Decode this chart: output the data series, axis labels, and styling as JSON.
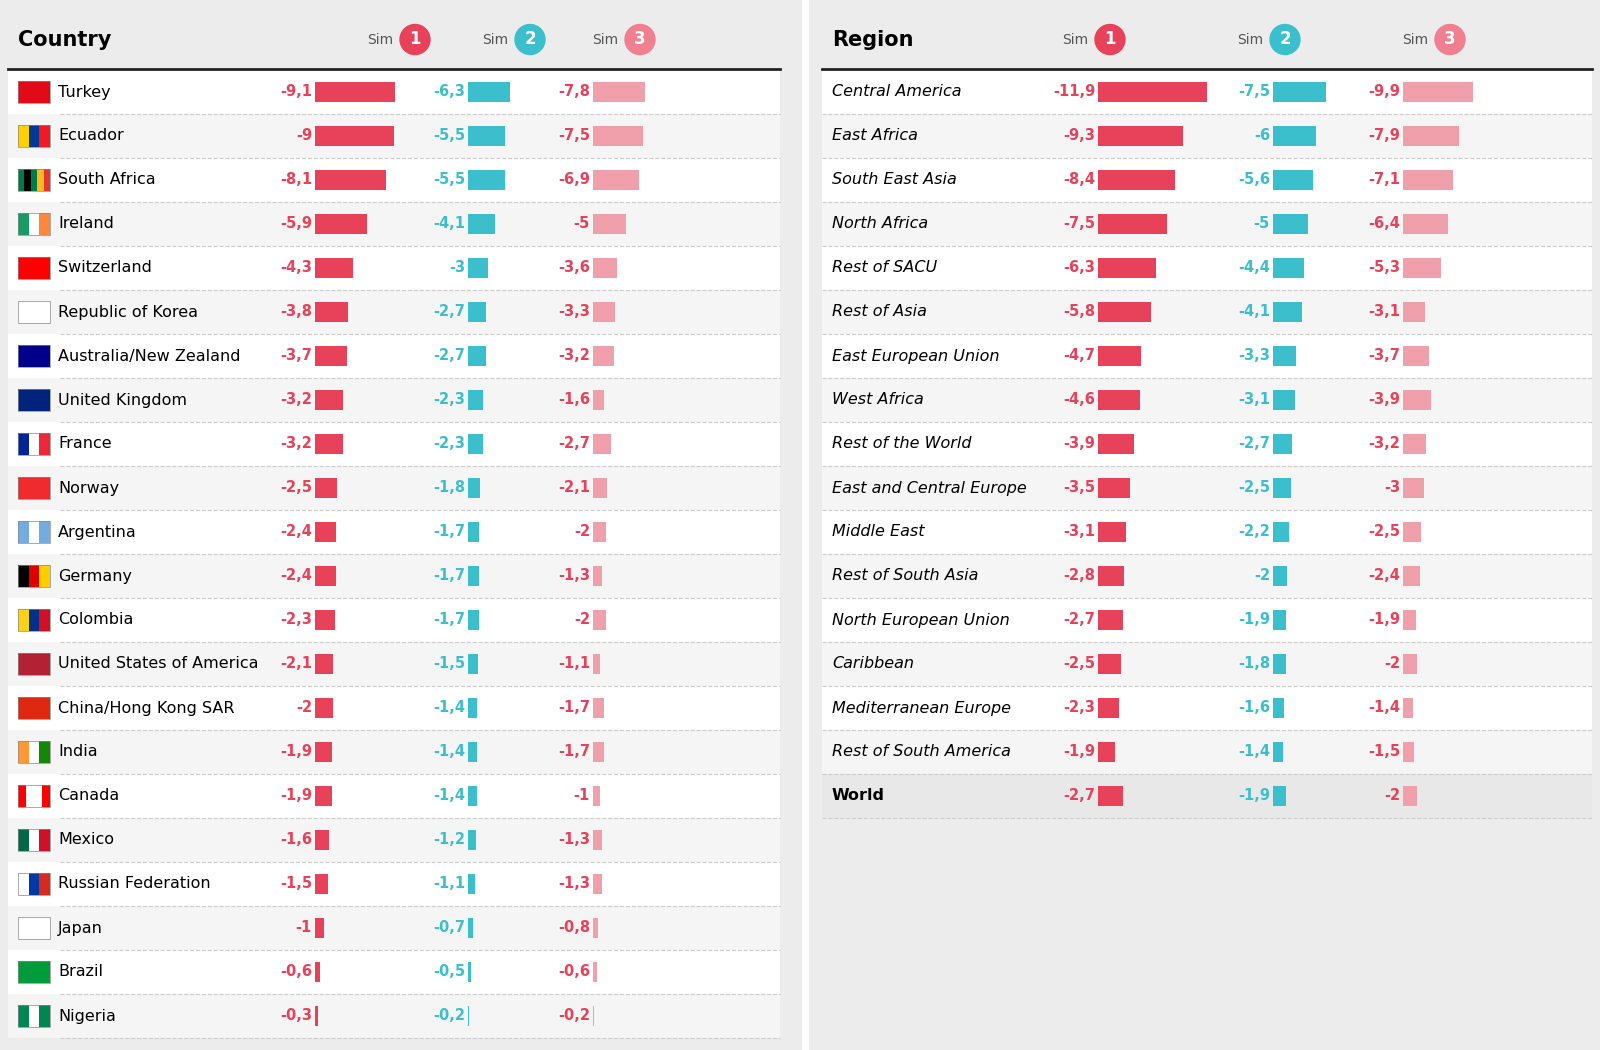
{
  "background_color": "#ececec",
  "white_bg": "#ffffff",
  "alt_bg": "#f5f5f5",
  "world_bg": "#e8e8e8",
  "country_header": "Country",
  "region_header": "Region",
  "sim1_color": "#e8415a",
  "sim2_color": "#3bbfcc",
  "sim3_color": "#f0a0aa",
  "bar1_color": "#e8415a",
  "bar2_color": "#3bbfcc",
  "bar3_color": "#f0a0aa",
  "sep_line_color": "#333333",
  "dash_color": "#cccccc",
  "header_text_color": "#444444",
  "countries": [
    {
      "name": "Turkey",
      "s1": -9.1,
      "s2": -6.3,
      "s3": -7.8
    },
    {
      "name": "Ecuador",
      "s1": -9.0,
      "s2": -5.5,
      "s3": -7.5
    },
    {
      "name": "South Africa",
      "s1": -8.1,
      "s2": -5.5,
      "s3": -6.9
    },
    {
      "name": "Ireland",
      "s1": -5.9,
      "s2": -4.1,
      "s3": -5.0
    },
    {
      "name": "Switzerland",
      "s1": -4.3,
      "s2": -3.0,
      "s3": -3.6
    },
    {
      "name": "Republic of Korea",
      "s1": -3.8,
      "s2": -2.7,
      "s3": -3.3
    },
    {
      "name": "Australia/New Zealand",
      "s1": -3.7,
      "s2": -2.7,
      "s3": -3.2
    },
    {
      "name": "United Kingdom",
      "s1": -3.2,
      "s2": -2.3,
      "s3": -1.6
    },
    {
      "name": "France",
      "s1": -3.2,
      "s2": -2.3,
      "s3": -2.7
    },
    {
      "name": "Norway",
      "s1": -2.5,
      "s2": -1.8,
      "s3": -2.1
    },
    {
      "name": "Argentina",
      "s1": -2.4,
      "s2": -1.7,
      "s3": -2.0
    },
    {
      "name": "Germany",
      "s1": -2.4,
      "s2": -1.7,
      "s3": -1.3
    },
    {
      "name": "Colombia",
      "s1": -2.3,
      "s2": -1.7,
      "s3": -2.0
    },
    {
      "name": "United States of America",
      "s1": -2.1,
      "s2": -1.5,
      "s3": -1.1
    },
    {
      "name": "China/Hong Kong SAR",
      "s1": -2.0,
      "s2": -1.4,
      "s3": -1.7
    },
    {
      "name": "India",
      "s1": -1.9,
      "s2": -1.4,
      "s3": -1.7
    },
    {
      "name": "Canada",
      "s1": -1.9,
      "s2": -1.4,
      "s3": -1.0
    },
    {
      "name": "Mexico",
      "s1": -1.6,
      "s2": -1.2,
      "s3": -1.3
    },
    {
      "name": "Russian Federation",
      "s1": -1.5,
      "s2": -1.1,
      "s3": -1.3
    },
    {
      "name": "Japan",
      "s1": -1.0,
      "s2": -0.7,
      "s3": -0.8
    },
    {
      "name": "Brazil",
      "s1": -0.6,
      "s2": -0.5,
      "s3": -0.6
    },
    {
      "name": "Nigeria",
      "s1": -0.3,
      "s2": -0.2,
      "s3": -0.2
    }
  ],
  "regions": [
    {
      "name": "Central America",
      "s1": -11.9,
      "s2": -7.5,
      "s3": -9.9,
      "bold": false
    },
    {
      "name": "East Africa",
      "s1": -9.3,
      "s2": -6.0,
      "s3": -7.9,
      "bold": false
    },
    {
      "name": "South East Asia",
      "s1": -8.4,
      "s2": -5.6,
      "s3": -7.1,
      "bold": false
    },
    {
      "name": "North Africa",
      "s1": -7.5,
      "s2": -5.0,
      "s3": -6.4,
      "bold": false
    },
    {
      "name": "Rest of SACU",
      "s1": -6.3,
      "s2": -4.4,
      "s3": -5.3,
      "bold": false
    },
    {
      "name": "Rest of Asia",
      "s1": -5.8,
      "s2": -4.1,
      "s3": -3.1,
      "bold": false
    },
    {
      "name": "East European Union",
      "s1": -4.7,
      "s2": -3.3,
      "s3": -3.7,
      "bold": false
    },
    {
      "name": "West Africa",
      "s1": -4.6,
      "s2": -3.1,
      "s3": -3.9,
      "bold": false
    },
    {
      "name": "Rest of the World",
      "s1": -3.9,
      "s2": -2.7,
      "s3": -3.2,
      "bold": false
    },
    {
      "name": "East and Central Europe",
      "s1": -3.5,
      "s2": -2.5,
      "s3": -3.0,
      "bold": false
    },
    {
      "name": "Middle East",
      "s1": -3.1,
      "s2": -2.2,
      "s3": -2.5,
      "bold": false
    },
    {
      "name": "Rest of South Asia",
      "s1": -2.8,
      "s2": -2.0,
      "s3": -2.4,
      "bold": false
    },
    {
      "name": "North European Union",
      "s1": -2.7,
      "s2": -1.9,
      "s3": -1.9,
      "bold": false
    },
    {
      "name": "Caribbean",
      "s1": -2.5,
      "s2": -1.8,
      "s3": -2.0,
      "bold": false
    },
    {
      "name": "Mediterranean Europe",
      "s1": -2.3,
      "s2": -1.6,
      "s3": -1.4,
      "bold": false
    },
    {
      "name": "Rest of South America",
      "s1": -1.9,
      "s2": -1.4,
      "s3": -1.5,
      "bold": false
    },
    {
      "name": "World",
      "s1": -2.7,
      "s2": -1.9,
      "s3": -2.0,
      "bold": true
    }
  ],
  "flag_colors": {
    "Turkey": [
      "#e30a17",
      "#ffffff"
    ],
    "Ecuador": [
      "#ffd100",
      "#0033a0"
    ],
    "South Africa": [
      "#007a4d",
      "#000000"
    ],
    "Ireland": [
      "#169b62",
      "#ff883e"
    ],
    "Switzerland": [
      "#ff0000",
      "#ffffff"
    ],
    "Republic of Korea": [
      "#cccccc",
      "#c60c30"
    ],
    "Australia/New Zealand": [
      "#00008b",
      "#ff0000"
    ],
    "United Kingdom": [
      "#00247d",
      "#cf142b"
    ],
    "France": [
      "#002395",
      "#ed2939"
    ],
    "Norway": [
      "#ef2b2d",
      "#002868"
    ],
    "Argentina": [
      "#74acdf",
      "#ffffff"
    ],
    "Germany": [
      "#000000",
      "#dd0000"
    ],
    "Colombia": [
      "#fcd116",
      "#003087"
    ],
    "United States of America": [
      "#b22234",
      "#3c3b6e"
    ],
    "China/Hong Kong SAR": [
      "#de2910",
      "#ffde00"
    ],
    "India": [
      "#ff9933",
      "#138808"
    ],
    "Canada": [
      "#ff0000",
      "#ffffff"
    ],
    "Mexico": [
      "#006847",
      "#ce1126"
    ],
    "Russian Federation": [
      "#ffffff",
      "#d52b1e"
    ],
    "Japan": [
      "#ffffff",
      "#bc002d"
    ],
    "Brazil": [
      "#009c3b",
      "#fedf00"
    ],
    "Nigeria": [
      "#008751",
      "#ffffff"
    ]
  }
}
